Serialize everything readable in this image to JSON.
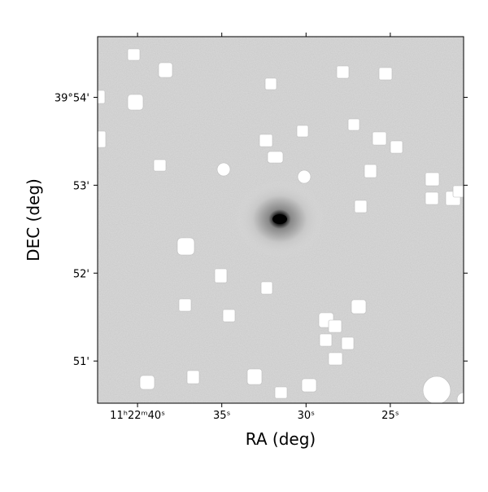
{
  "chart_data": {
    "type": "image",
    "xlabel": "RA (deg)",
    "ylabel": "DEC (deg)",
    "xlim": [
      42.37,
      20.65
    ],
    "xticks": [
      {
        "value": 40,
        "label": "11ʰ22ᵐ40ˢ"
      },
      {
        "value": 35,
        "label": "35ˢ"
      },
      {
        "value": 30,
        "label": "30ˢ"
      },
      {
        "value": 25,
        "label": "25ˢ"
      }
    ],
    "ylim": [
      50.52,
      54.69
    ],
    "yticks": [
      {
        "value": 54,
        "label": "39°54'"
      },
      {
        "value": 53,
        "label": "53'"
      },
      {
        "value": 52,
        "label": "52'"
      },
      {
        "value": 51,
        "label": "51'"
      }
    ]
  }
}
